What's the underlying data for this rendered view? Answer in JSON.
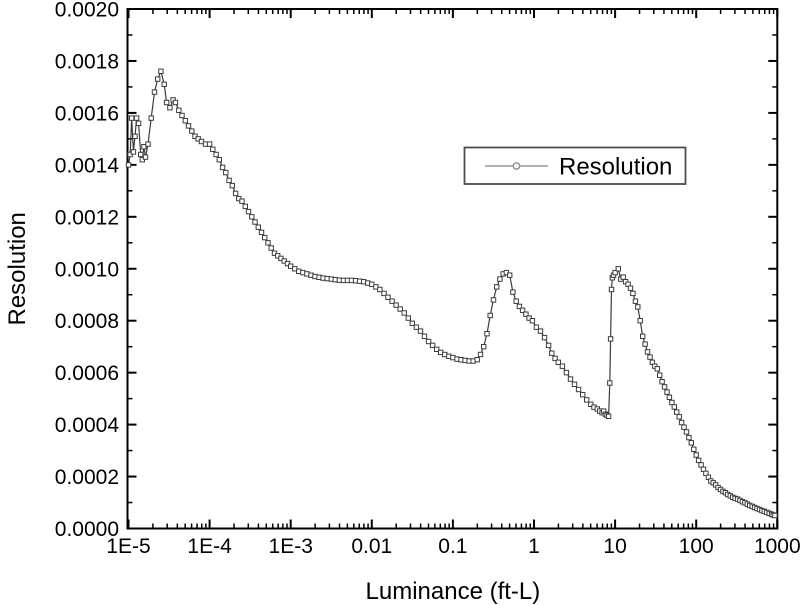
{
  "chart_data": {
    "type": "line",
    "title": "",
    "xlabel": "Luminance (ft-L)",
    "ylabel": "Resolution",
    "x_scale": "log",
    "x_range_log10": [
      -5,
      3
    ],
    "ylim": [
      0.0,
      0.002
    ],
    "y_major_step": 0.0002,
    "y_minor_step": 0.0001,
    "grid": "off",
    "frame": "full-box",
    "x_tick_labels": [
      "1E-5",
      "1E-4",
      "1E-3",
      "0.01",
      "0.1",
      "1",
      "10",
      "100",
      "1000"
    ],
    "y_tick_labels": [
      "0.0000",
      "0.0002",
      "0.0004",
      "0.0006",
      "0.0008",
      "0.0010",
      "0.0012",
      "0.0014",
      "0.0016",
      "0.0018",
      "0.0020"
    ],
    "legend": {
      "position": "inside-upper-right",
      "entries": [
        {
          "label": "Resolution",
          "marker": "open-circle",
          "line_color": "#999999"
        }
      ]
    },
    "style": {
      "line_color": "#3c3c3c",
      "marker_shape": "open-square",
      "marker_fill": "#ffffff",
      "marker_edge": "#3c3c3c",
      "axis_color": "#000000",
      "background": "#ffffff"
    },
    "series": [
      {
        "name": "Resolution",
        "points_log10x_y": [
          [
            -5.0,
            0.0014
          ],
          [
            -4.98,
            0.00144
          ],
          [
            -4.96,
            0.00158
          ],
          [
            -4.94,
            0.00145
          ],
          [
            -4.92,
            0.00151
          ],
          [
            -4.9,
            0.00158
          ],
          [
            -4.875,
            0.00156
          ],
          [
            -4.85,
            0.00144
          ],
          [
            -4.83,
            0.00142
          ],
          [
            -4.81,
            0.00147
          ],
          [
            -4.79,
            0.00143
          ],
          [
            -4.76,
            0.00148
          ],
          [
            -4.72,
            0.00158
          ],
          [
            -4.68,
            0.00168
          ],
          [
            -4.64,
            0.00173
          ],
          [
            -4.6,
            0.00176
          ],
          [
            -4.56,
            0.00171
          ],
          [
            -4.53,
            0.00164
          ],
          [
            -4.49,
            0.00162
          ],
          [
            -4.45,
            0.00165
          ],
          [
            -4.42,
            0.00164
          ],
          [
            -4.38,
            0.00161
          ],
          [
            -4.34,
            0.00159
          ],
          [
            -4.3,
            0.00157
          ],
          [
            -4.26,
            0.00155
          ],
          [
            -4.22,
            0.00153
          ],
          [
            -4.18,
            0.00151
          ],
          [
            -4.14,
            0.0015
          ],
          [
            -4.1,
            0.00149
          ],
          [
            -4.05,
            0.00148
          ],
          [
            -4.0,
            0.00148
          ],
          [
            -3.96,
            0.00146
          ],
          [
            -3.92,
            0.00144
          ],
          [
            -3.88,
            0.00142
          ],
          [
            -3.84,
            0.00139
          ],
          [
            -3.8,
            0.00137
          ],
          [
            -3.76,
            0.00134
          ],
          [
            -3.72,
            0.00132
          ],
          [
            -3.68,
            0.00129
          ],
          [
            -3.64,
            0.00127
          ],
          [
            -3.6,
            0.00126
          ],
          [
            -3.56,
            0.00124
          ],
          [
            -3.52,
            0.00122
          ],
          [
            -3.48,
            0.0012
          ],
          [
            -3.44,
            0.00118
          ],
          [
            -3.4,
            0.00116
          ],
          [
            -3.36,
            0.00114
          ],
          [
            -3.32,
            0.00112
          ],
          [
            -3.28,
            0.0011
          ],
          [
            -3.24,
            0.00108
          ],
          [
            -3.2,
            0.00106
          ],
          [
            -3.16,
            0.00105
          ],
          [
            -3.12,
            0.00104
          ],
          [
            -3.08,
            0.00103
          ],
          [
            -3.04,
            0.00102
          ],
          [
            -3.0,
            0.00101
          ],
          [
            -2.95,
            0.001
          ],
          [
            -2.9,
            0.00099
          ],
          [
            -2.85,
            0.000985
          ],
          [
            -2.8,
            0.00098
          ],
          [
            -2.75,
            0.000975
          ],
          [
            -2.7,
            0.00097
          ],
          [
            -2.65,
            0.000967
          ],
          [
            -2.6,
            0.000964
          ],
          [
            -2.55,
            0.000962
          ],
          [
            -2.5,
            0.00096
          ],
          [
            -2.45,
            0.000958
          ],
          [
            -2.4,
            0.000956
          ],
          [
            -2.35,
            0.000955
          ],
          [
            -2.3,
            0.000955
          ],
          [
            -2.25,
            0.000955
          ],
          [
            -2.2,
            0.000954
          ],
          [
            -2.15,
            0.000952
          ],
          [
            -2.1,
            0.00095
          ],
          [
            -2.05,
            0.000945
          ],
          [
            -2.0,
            0.00094
          ],
          [
            -1.95,
            0.00093
          ],
          [
            -1.9,
            0.00092
          ],
          [
            -1.85,
            0.000905
          ],
          [
            -1.8,
            0.00089
          ],
          [
            -1.75,
            0.000875
          ],
          [
            -1.7,
            0.00086
          ],
          [
            -1.65,
            0.000845
          ],
          [
            -1.6,
            0.00083
          ],
          [
            -1.55,
            0.00081
          ],
          [
            -1.5,
            0.00079
          ],
          [
            -1.45,
            0.000775
          ],
          [
            -1.4,
            0.00076
          ],
          [
            -1.35,
            0.00074
          ],
          [
            -1.3,
            0.00072
          ],
          [
            -1.25,
            0.000705
          ],
          [
            -1.2,
            0.00069
          ],
          [
            -1.15,
            0.000678
          ],
          [
            -1.1,
            0.00067
          ],
          [
            -1.05,
            0.000663
          ],
          [
            -1.0,
            0.000658
          ],
          [
            -0.95,
            0.000652
          ],
          [
            -0.9,
            0.00065
          ],
          [
            -0.85,
            0.000647
          ],
          [
            -0.8,
            0.000645
          ],
          [
            -0.75,
            0.000645
          ],
          [
            -0.7,
            0.00065
          ],
          [
            -0.66,
            0.00067
          ],
          [
            -0.62,
            0.0007
          ],
          [
            -0.58,
            0.00075
          ],
          [
            -0.54,
            0.00082
          ],
          [
            -0.5,
            0.00088
          ],
          [
            -0.46,
            0.00093
          ],
          [
            -0.42,
            0.00096
          ],
          [
            -0.38,
            0.00098
          ],
          [
            -0.34,
            0.000985
          ],
          [
            -0.3,
            0.000975
          ],
          [
            -0.26,
            0.00091
          ],
          [
            -0.22,
            0.000875
          ],
          [
            -0.18,
            0.000855
          ],
          [
            -0.14,
            0.00084
          ],
          [
            -0.1,
            0.000825
          ],
          [
            -0.06,
            0.00081
          ],
          [
            -0.02,
            0.0008
          ],
          [
            0.03,
            0.000775
          ],
          [
            0.08,
            0.00076
          ],
          [
            0.13,
            0.000735
          ],
          [
            0.18,
            0.000705
          ],
          [
            0.22,
            0.000675
          ],
          [
            0.26,
            0.000655
          ],
          [
            0.3,
            0.00064
          ],
          [
            0.35,
            0.000625
          ],
          [
            0.4,
            0.0006
          ],
          [
            0.45,
            0.000575
          ],
          [
            0.5,
            0.000555
          ],
          [
            0.55,
            0.000535
          ],
          [
            0.6,
            0.000515
          ],
          [
            0.65,
            0.000495
          ],
          [
            0.7,
            0.000478
          ],
          [
            0.74,
            0.000467
          ],
          [
            0.78,
            0.00046
          ],
          [
            0.81,
            0.000452
          ],
          [
            0.84,
            0.000446
          ],
          [
            0.86,
            0.000452
          ],
          [
            0.88,
            0.00044
          ],
          [
            0.9,
            0.000436
          ],
          [
            0.92,
            0.000432
          ],
          [
            0.935,
            0.00056
          ],
          [
            0.945,
            0.00073
          ],
          [
            0.955,
            0.00092
          ],
          [
            0.965,
            0.000965
          ],
          [
            0.98,
            0.000975
          ],
          [
            1.0,
            0.000985
          ],
          [
            1.04,
            0.001
          ],
          [
            1.07,
            0.00096
          ],
          [
            1.1,
            0.000968
          ],
          [
            1.13,
            0.00095
          ],
          [
            1.16,
            0.00094
          ],
          [
            1.19,
            0.000925
          ],
          [
            1.22,
            0.000905
          ],
          [
            1.25,
            0.000875
          ],
          [
            1.28,
            0.000853
          ],
          [
            1.31,
            0.0008
          ],
          [
            1.34,
            0.00074
          ],
          [
            1.37,
            0.00071
          ],
          [
            1.4,
            0.00068
          ],
          [
            1.43,
            0.00066
          ],
          [
            1.46,
            0.00064
          ],
          [
            1.49,
            0.000625
          ],
          [
            1.52,
            0.000615
          ],
          [
            1.55,
            0.00059
          ],
          [
            1.58,
            0.000565
          ],
          [
            1.61,
            0.000545
          ],
          [
            1.64,
            0.000525
          ],
          [
            1.67,
            0.000505
          ],
          [
            1.7,
            0.000485
          ],
          [
            1.73,
            0.000468
          ],
          [
            1.76,
            0.000448
          ],
          [
            1.79,
            0.00043
          ],
          [
            1.82,
            0.000408
          ],
          [
            1.85,
            0.00039
          ],
          [
            1.88,
            0.000372
          ],
          [
            1.91,
            0.00035
          ],
          [
            1.94,
            0.00033
          ],
          [
            1.97,
            0.000305
          ],
          [
            2.0,
            0.000283
          ],
          [
            2.03,
            0.000262
          ],
          [
            2.06,
            0.000245
          ],
          [
            2.09,
            0.000228
          ],
          [
            2.12,
            0.000212
          ],
          [
            2.15,
            0.000197
          ],
          [
            2.18,
            0.000183
          ],
          [
            2.21,
            0.000176
          ],
          [
            2.24,
            0.000168
          ],
          [
            2.27,
            0.000158
          ],
          [
            2.3,
            0.00015
          ],
          [
            2.33,
            0.000143
          ],
          [
            2.36,
            0.000138
          ],
          [
            2.39,
            0.000131
          ],
          [
            2.42,
            0.000126
          ],
          [
            2.45,
            0.00012
          ],
          [
            2.48,
            0.000116
          ],
          [
            2.51,
            0.000113
          ],
          [
            2.54,
            0.000108
          ],
          [
            2.57,
            0.000103
          ],
          [
            2.6,
            9.9e-05
          ],
          [
            2.63,
            9.4e-05
          ],
          [
            2.66,
            8.9e-05
          ],
          [
            2.69,
            8.5e-05
          ],
          [
            2.72,
            8.1e-05
          ],
          [
            2.75,
            7.7e-05
          ],
          [
            2.78,
            7.3e-05
          ],
          [
            2.81,
            6.9e-05
          ],
          [
            2.84,
            6.6e-05
          ],
          [
            2.87,
            6.2e-05
          ],
          [
            2.9,
            5.8e-05
          ],
          [
            2.93,
            5.5e-05
          ],
          [
            2.95,
            5.2e-05
          ],
          [
            2.97,
            5e-05
          ]
        ]
      }
    ]
  }
}
